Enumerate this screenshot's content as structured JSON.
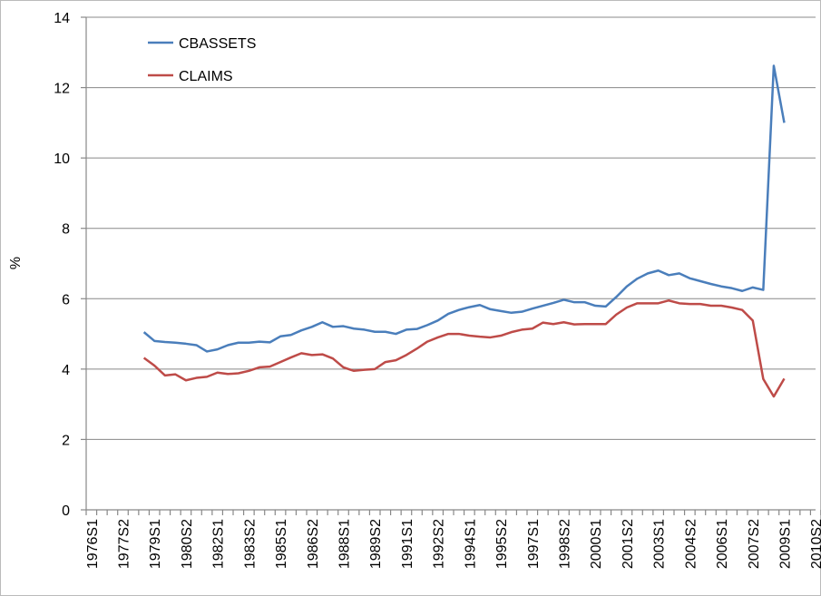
{
  "chart_data": {
    "type": "line",
    "ylabel": "%",
    "categories": [
      "1976S1",
      null,
      null,
      "1977S2",
      null,
      null,
      "1979S1",
      null,
      null,
      "1980S2",
      null,
      null,
      "1982S1",
      null,
      null,
      "1983S2",
      null,
      null,
      "1985S1",
      null,
      null,
      "1986S2",
      null,
      null,
      "1988S1",
      null,
      null,
      "1989S2",
      null,
      null,
      "1991S1",
      null,
      null,
      "1992S2",
      null,
      null,
      "1994S1",
      null,
      null,
      "1995S2",
      null,
      null,
      "1997S1",
      null,
      null,
      "1998S2",
      null,
      null,
      "2000S1",
      null,
      null,
      "2001S2",
      null,
      null,
      "2003S1",
      null,
      null,
      "2004S2",
      null,
      null,
      "2006S1",
      null,
      null,
      "2007S2",
      null,
      null,
      "2009S1",
      null,
      null,
      "2010S2"
    ],
    "series": [
      {
        "name": "CBASSETS",
        "color": "#4a7ebb",
        "values": [
          null,
          null,
          null,
          null,
          null,
          5.05,
          4.8,
          4.77,
          4.75,
          4.72,
          4.68,
          4.5,
          4.56,
          4.68,
          4.75,
          4.75,
          4.78,
          4.76,
          4.93,
          4.97,
          5.1,
          5.2,
          5.33,
          5.2,
          5.22,
          5.15,
          5.12,
          5.06,
          5.06,
          5.0,
          5.12,
          5.14,
          5.25,
          5.38,
          5.57,
          5.68,
          5.76,
          5.82,
          5.7,
          5.65,
          5.6,
          5.63,
          5.72,
          5.8,
          5.88,
          5.97,
          5.9,
          5.9,
          5.8,
          5.78,
          6.05,
          6.35,
          6.57,
          6.72,
          6.8,
          6.67,
          6.72,
          6.58,
          6.5,
          6.42,
          6.35,
          6.3,
          6.22,
          6.32,
          6.25,
          12.62,
          11.0,
          null,
          null,
          null
        ]
      },
      {
        "name": "CLAIMS",
        "color": "#be4b48",
        "values": [
          null,
          null,
          null,
          null,
          null,
          4.32,
          4.1,
          3.82,
          3.85,
          3.68,
          3.75,
          3.78,
          3.9,
          3.86,
          3.88,
          3.95,
          4.05,
          4.07,
          4.2,
          4.33,
          4.45,
          4.4,
          4.42,
          4.3,
          4.05,
          3.95,
          3.98,
          4.0,
          4.2,
          4.25,
          4.4,
          4.58,
          4.78,
          4.9,
          5.0,
          5.0,
          4.95,
          4.92,
          4.9,
          4.95,
          5.05,
          5.12,
          5.15,
          5.32,
          5.28,
          5.33,
          5.27,
          5.28,
          5.28,
          5.28,
          5.55,
          5.75,
          5.87,
          5.87,
          5.87,
          5.95,
          5.87,
          5.85,
          5.85,
          5.8,
          5.8,
          5.75,
          5.68,
          5.38,
          3.72,
          3.22,
          3.73,
          null,
          null,
          null
        ]
      }
    ],
    "ylim": [
      0,
      14
    ],
    "yticks": [
      0,
      2,
      4,
      6,
      8,
      10,
      12,
      14
    ],
    "grid": true,
    "legend": "top-left"
  }
}
